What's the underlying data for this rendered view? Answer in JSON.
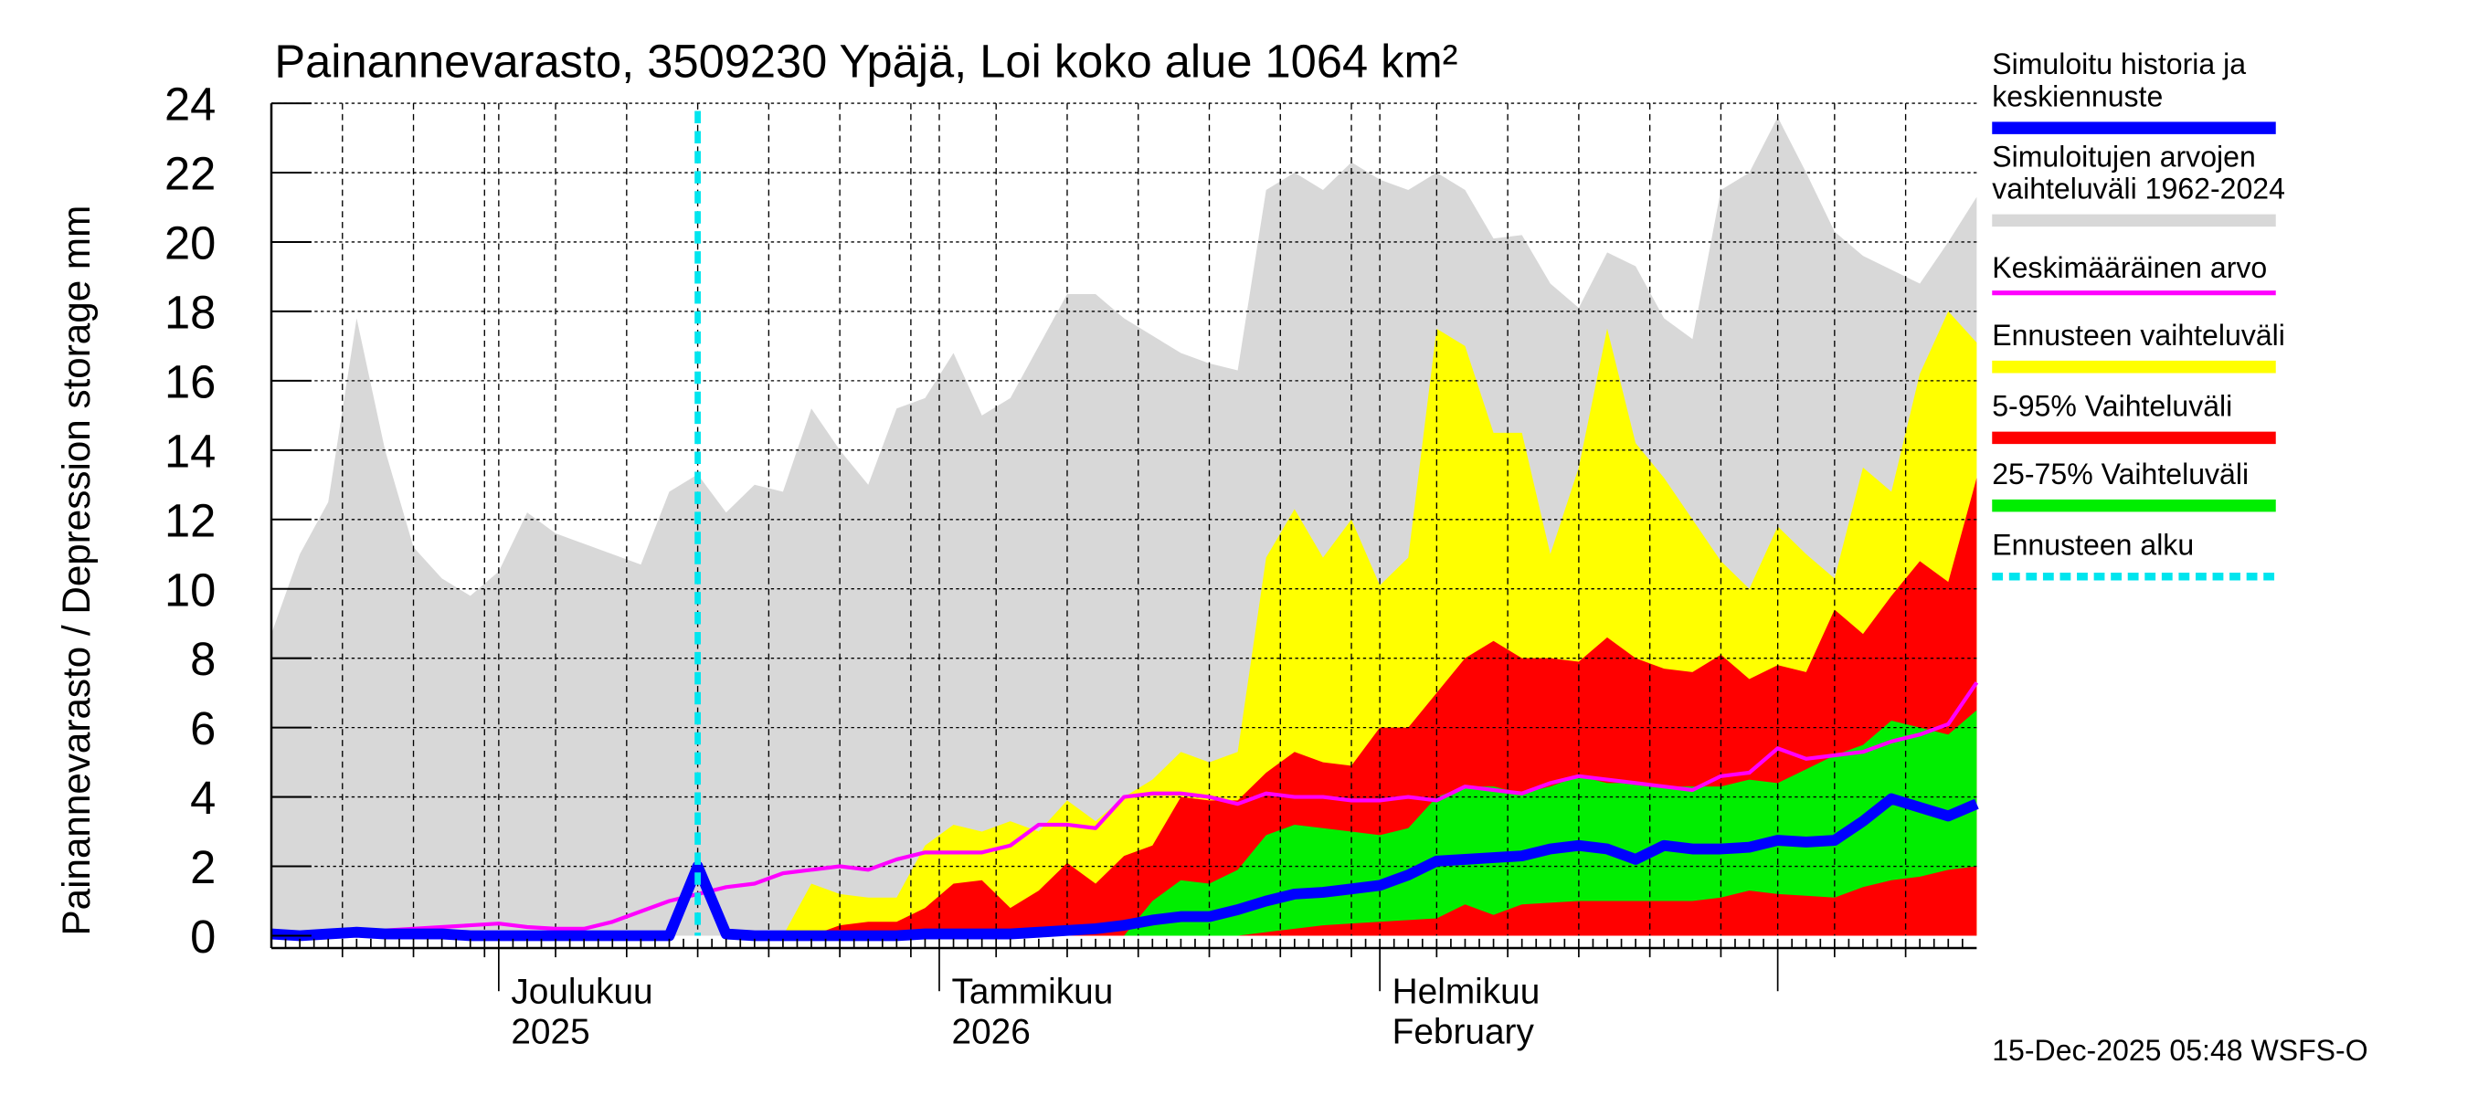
{
  "chart_data": {
    "type": "area",
    "title": "Painannevarasto, 3509230 Ypäjä, Loi koko alue 1064 km²",
    "ylabel": "Painannevarasto / Depression storage    mm",
    "ylim": [
      0,
      24
    ],
    "yticks": [
      0,
      2,
      4,
      6,
      8,
      10,
      12,
      14,
      16,
      18,
      20,
      22,
      24
    ],
    "xlim": [
      "2025-11-15",
      "2026-03-15"
    ],
    "grid": true,
    "legend_position": "right",
    "month_labels": [
      {
        "date": "2025-12-01",
        "line1": "Joulukuu",
        "line2": "2025"
      },
      {
        "date": "2026-01-01",
        "line1": "Tammikuu",
        "line2": "2026"
      },
      {
        "date": "2026-02-01",
        "line1": "Helmikuu",
        "line2": "February"
      }
    ],
    "forecast_start": "2025-12-15",
    "timestamp": "15-Dec-2025 05:48 WSFS-O",
    "dates": [
      "2025-11-15",
      "2025-11-17",
      "2025-11-19",
      "2025-11-21",
      "2025-11-23",
      "2025-11-25",
      "2025-11-27",
      "2025-11-29",
      "2025-12-01",
      "2025-12-03",
      "2025-12-05",
      "2025-12-07",
      "2025-12-09",
      "2025-12-11",
      "2025-12-13",
      "2025-12-15",
      "2025-12-17",
      "2025-12-19",
      "2025-12-21",
      "2025-12-23",
      "2025-12-25",
      "2025-12-27",
      "2025-12-29",
      "2025-12-31",
      "2026-01-02",
      "2026-01-04",
      "2026-01-06",
      "2026-01-08",
      "2026-01-10",
      "2026-01-12",
      "2026-01-14",
      "2026-01-16",
      "2026-01-18",
      "2026-01-20",
      "2026-01-22",
      "2026-01-24",
      "2026-01-26",
      "2026-01-28",
      "2026-01-30",
      "2026-02-01",
      "2026-02-03",
      "2026-02-05",
      "2026-02-07",
      "2026-02-09",
      "2026-02-11",
      "2026-02-13",
      "2026-02-15",
      "2026-02-17",
      "2026-02-19",
      "2026-02-21",
      "2026-02-23",
      "2026-02-25",
      "2026-02-27",
      "2026-03-01",
      "2026-03-03",
      "2026-03-05",
      "2026-03-07",
      "2026-03-09",
      "2026-03-11",
      "2026-03-13",
      "2026-03-15"
    ],
    "series": [
      {
        "name": "Simuloitujen arvojen vaihteluväli 1962-2024",
        "kind": "band",
        "color": "#d8d8d8",
        "upper": [
          8.7,
          11,
          12.5,
          17.8,
          14,
          11.2,
          10.3,
          9.8,
          10.5,
          12.2,
          11.6,
          11.3,
          11,
          10.7,
          12.8,
          13.3,
          12.2,
          13,
          12.8,
          15.2,
          14,
          13,
          15.2,
          15.5,
          16.8,
          15,
          15.5,
          17,
          18.5,
          18.5,
          17.8,
          17.3,
          16.8,
          16.5,
          16.3,
          21.5,
          22,
          21.5,
          22.3,
          21.8,
          21.5,
          22,
          21.5,
          20.1,
          20.2,
          18.8,
          18.1,
          19.7,
          19.3,
          17.8,
          17.2,
          21.5,
          22,
          23.6,
          22,
          20.3,
          19.6,
          19.2,
          18.8,
          20,
          21.3
        ],
        "lower": [
          0,
          0,
          0,
          0,
          0,
          0,
          0,
          0,
          0,
          0,
          0,
          0,
          0,
          0,
          0,
          0,
          0,
          0,
          0,
          0,
          0,
          0,
          0,
          0,
          0,
          0,
          0,
          0,
          0,
          0,
          0,
          0,
          0,
          0,
          0,
          0,
          0,
          0,
          0,
          0,
          0,
          0,
          0,
          0,
          0,
          0,
          0,
          0,
          0,
          0,
          0,
          0,
          0,
          0,
          0,
          0,
          0,
          0,
          0,
          0,
          0
        ]
      },
      {
        "name": "Ennusteen vaihteluväli",
        "kind": "band",
        "color": "#ffff00",
        "upper": [
          0,
          0,
          0,
          0,
          0,
          0,
          0,
          0,
          0,
          0,
          0,
          0,
          0,
          0,
          0,
          0,
          0,
          0,
          0,
          1.5,
          1.2,
          1.1,
          1.1,
          2.6,
          3.2,
          3,
          3.3,
          3,
          3.9,
          3.3,
          4,
          4.5,
          5.3,
          5,
          5.3,
          10.9,
          12.3,
          10.9,
          12,
          10.1,
          10.9,
          17.5,
          17,
          14.5,
          14.5,
          11,
          13.5,
          17.5,
          14.2,
          13.2,
          12,
          10.8,
          10,
          11.8,
          11,
          10.3,
          13.5,
          12.8,
          16.2,
          18,
          17.1
        ],
        "lower": [
          0,
          0,
          0,
          0,
          0,
          0,
          0,
          0,
          0,
          0,
          0,
          0,
          0,
          0,
          0,
          0,
          0,
          0,
          0,
          0,
          0,
          0,
          0,
          0,
          0,
          0,
          0,
          0,
          0,
          0,
          0,
          0,
          0,
          0,
          0,
          0,
          0,
          0,
          0,
          0,
          0,
          0,
          0,
          0,
          0,
          0,
          0,
          0,
          0,
          0,
          0,
          0,
          0,
          0,
          0,
          0,
          0,
          0,
          0,
          0,
          0
        ]
      },
      {
        "name": "5-95% Vaihteluväli",
        "kind": "band",
        "color": "#ff0000",
        "upper": [
          0,
          0,
          0,
          0,
          0,
          0,
          0,
          0,
          0,
          0,
          0,
          0,
          0,
          0,
          0,
          0,
          0,
          0,
          0,
          0,
          0.3,
          0.4,
          0.4,
          0.8,
          1.5,
          1.6,
          0.8,
          1.3,
          2.1,
          1.5,
          2.3,
          2.6,
          4,
          3.9,
          3.9,
          4.7,
          5.3,
          5,
          4.9,
          6,
          6,
          7,
          8,
          8.5,
          8,
          8,
          7.9,
          8.6,
          8,
          7.7,
          7.6,
          8.1,
          7.4,
          7.8,
          7.6,
          9.4,
          8.7,
          9.8,
          10.8,
          10.2,
          13.2
        ],
        "lower": [
          0,
          0,
          0,
          0,
          0,
          0,
          0,
          0,
          0,
          0,
          0,
          0,
          0,
          0,
          0,
          0,
          0,
          0,
          0,
          0,
          0,
          0,
          0,
          0,
          0,
          0,
          0,
          0,
          0,
          0,
          0,
          0,
          0,
          0,
          0,
          0,
          0,
          0,
          0,
          0,
          0,
          0,
          0,
          0,
          0,
          0,
          0,
          0,
          0,
          0,
          0,
          0,
          0,
          0,
          0,
          0,
          0,
          0,
          0,
          0,
          0
        ]
      },
      {
        "name": "25-75% Vaihteluväli",
        "kind": "band",
        "color": "#00ee00",
        "upper": [
          0,
          0,
          0,
          0,
          0,
          0,
          0,
          0,
          0,
          0,
          0,
          0,
          0,
          0,
          0,
          0,
          0,
          0,
          0,
          0,
          0,
          0,
          0,
          0,
          0,
          0,
          0,
          0,
          0,
          0,
          0,
          1,
          1.6,
          1.5,
          1.9,
          2.9,
          3.2,
          3.1,
          3,
          2.9,
          3.1,
          4,
          4.3,
          4.3,
          4.1,
          4.3,
          4.6,
          4.4,
          4.4,
          4.3,
          4.3,
          4.3,
          4.5,
          4.4,
          4.8,
          5.2,
          5.5,
          6.2,
          6,
          5.8,
          6.5
        ],
        "lower": [
          0,
          0,
          0,
          0,
          0,
          0,
          0,
          0,
          0,
          0,
          0,
          0,
          0,
          0,
          0,
          0,
          0,
          0,
          0,
          0,
          0,
          0,
          0,
          0,
          0,
          0,
          0,
          0,
          0,
          0,
          0,
          0,
          0,
          0,
          0,
          0.1,
          0.2,
          0.3,
          0.35,
          0.4,
          0.45,
          0.5,
          0.9,
          0.6,
          0.9,
          0.95,
          1,
          1,
          1,
          1,
          1,
          1.1,
          1.3,
          1.2,
          1.15,
          1.1,
          1.4,
          1.6,
          1.7,
          1.9,
          2
        ]
      },
      {
        "name": "Keskimääräinen arvo",
        "kind": "line",
        "color": "#ff00ff",
        "width": 2.5,
        "values": [
          0,
          0,
          0.05,
          0.1,
          0.15,
          0.2,
          0.25,
          0.3,
          0.35,
          0.25,
          0.2,
          0.2,
          0.4,
          0.7,
          1,
          1.2,
          1.4,
          1.5,
          1.8,
          1.9,
          2,
          1.9,
          2.2,
          2.4,
          2.4,
          2.4,
          2.6,
          3.2,
          3.2,
          3.1,
          4,
          4.1,
          4.1,
          4,
          3.8,
          4.1,
          4,
          4,
          3.9,
          3.9,
          4,
          3.9,
          4.3,
          4.2,
          4.1,
          4.4,
          4.6,
          4.5,
          4.4,
          4.3,
          4.2,
          4.6,
          4.7,
          5.4,
          5.1,
          5.2,
          5.3,
          5.6,
          5.8,
          6.1,
          7.3
        ]
      },
      {
        "name": "Simuloitu historia ja keskiennuste",
        "kind": "line",
        "color": "#0000ff",
        "width": 7,
        "values": [
          0.05,
          0,
          0.05,
          0.1,
          0.05,
          0.05,
          0.05,
          0,
          0,
          0,
          0,
          0,
          0,
          0,
          0,
          2,
          0.05,
          0,
          0,
          0,
          0,
          0,
          0,
          0.05,
          0.05,
          0.05,
          0.05,
          0.1,
          0.15,
          0.2,
          0.3,
          0.45,
          0.55,
          0.55,
          0.75,
          1,
          1.2,
          1.25,
          1.35,
          1.45,
          1.75,
          2.15,
          2.2,
          2.25,
          2.3,
          2.5,
          2.6,
          2.5,
          2.2,
          2.6,
          2.5,
          2.5,
          2.55,
          2.75,
          2.7,
          2.75,
          3.3,
          3.95,
          3.7,
          3.45,
          3.8
        ]
      }
    ],
    "legend": [
      {
        "label1": "Simuloitu historia ja",
        "label2": "keskiennuste",
        "color": "#0000ff",
        "style": "solid"
      },
      {
        "label1": "Simuloitujen arvojen",
        "label2": "vaihteluväli 1962-2024",
        "color": "#d8d8d8",
        "style": "solid"
      },
      {
        "label1": "Keskimääräinen arvo",
        "label2": "",
        "color": "#ff00ff",
        "style": "thin"
      },
      {
        "label1": "Ennusteen vaihteluväli",
        "label2": "",
        "color": "#ffff00",
        "style": "solid"
      },
      {
        "label1": "5-95% Vaihteluväli",
        "label2": "",
        "color": "#ff0000",
        "style": "solid"
      },
      {
        "label1": "25-75% Vaihteluväli",
        "label2": "",
        "color": "#00ee00",
        "style": "solid"
      },
      {
        "label1": "Ennusteen alku",
        "label2": "",
        "color": "#00e5ee",
        "style": "dashed"
      }
    ]
  }
}
